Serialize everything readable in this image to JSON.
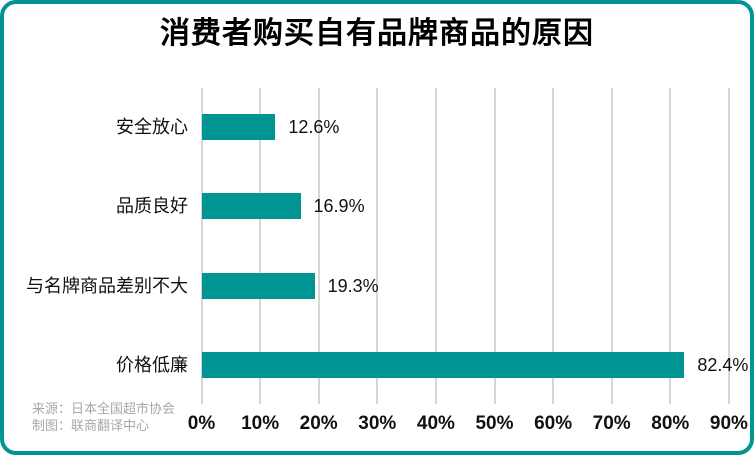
{
  "title": "消费者购买自有品牌商品的原因",
  "colors": {
    "accent_teal": "#009592",
    "gridline": "#d7d7d7",
    "text": "#111111",
    "source_text": "#a8a8a8",
    "background": "#ffffff"
  },
  "source": {
    "line1": "来源：日本全国超市协会",
    "line2": "制图：联商翻译中心"
  },
  "chart_data": {
    "type": "bar",
    "orientation": "horizontal",
    "title": "消费者购买自有品牌商品的原因",
    "categories": [
      "安全放心",
      "品质良好",
      "与名牌商品差别不大",
      "价格低廉"
    ],
    "values": [
      12.6,
      16.9,
      19.3,
      82.4
    ],
    "value_labels": [
      "12.6%",
      "16.9%",
      "19.3%",
      "82.4%"
    ],
    "xlabel": "",
    "ylabel": "",
    "xlim": [
      0,
      90
    ],
    "x_ticks": [
      "0%",
      "10%",
      "20%",
      "30%",
      "40%",
      "50%",
      "60%",
      "70%",
      "80%",
      "90%"
    ],
    "x_tick_values": [
      0,
      10,
      20,
      30,
      40,
      50,
      60,
      70,
      80,
      90
    ],
    "grid": true,
    "legend": false,
    "bar_color": "#009592"
  }
}
